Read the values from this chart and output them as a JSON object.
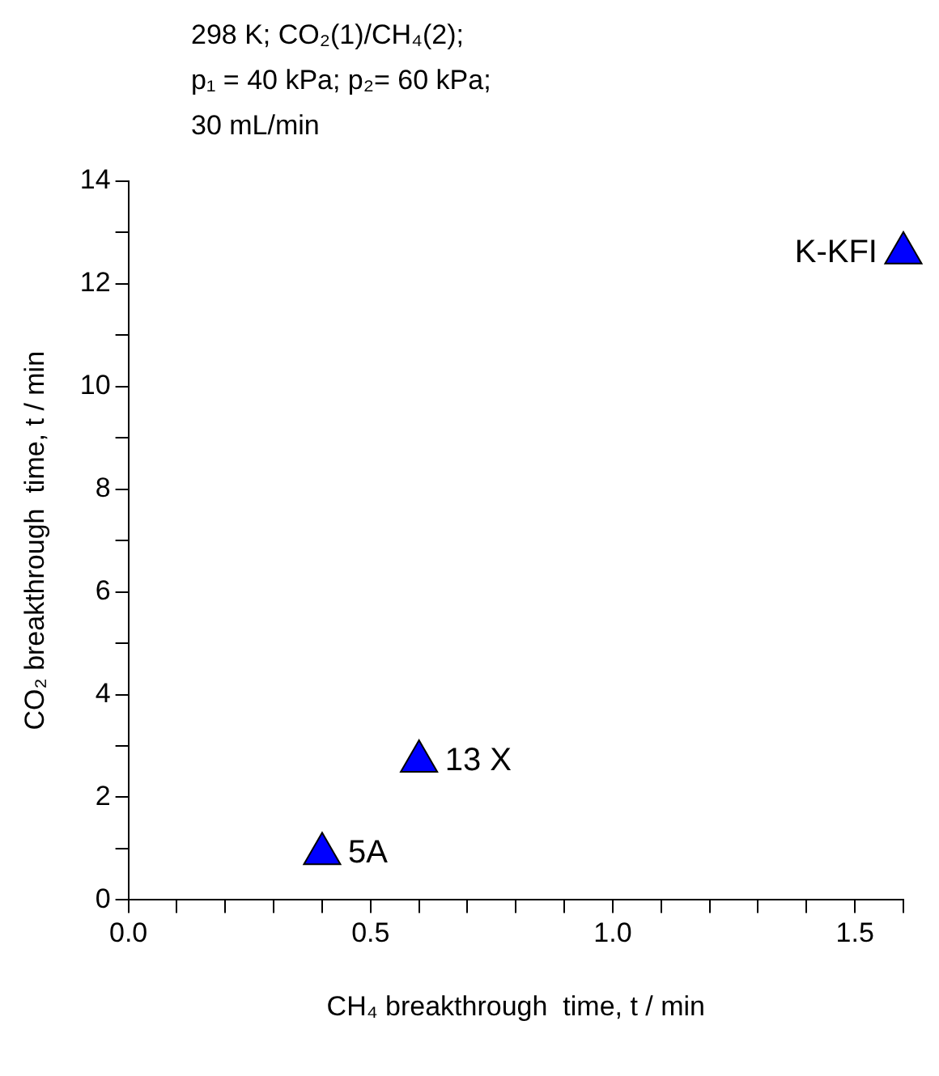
{
  "chart_data": {
    "type": "scatter",
    "title": "298 K; CO₂(1)/CH₄(2);\np₁ = 40 kPa; p₂= 60 kPa;\n30 mL/min",
    "xlabel": "CH₄ breakthrough  time, t / min",
    "ylabel": "CO₂ breakthrough  time, t / min",
    "x": [
      0.4,
      0.6,
      1.6
    ],
    "values": [
      0.9,
      2.7,
      12.6
    ],
    "color": "#0000ff",
    "marker": "triangle",
    "grid": false,
    "legend": false,
    "xlim": [
      0,
      1.6
    ],
    "xticks": [
      {
        "value": 0,
        "label": "0.0"
      },
      {
        "value": 0.1,
        "label": null
      },
      {
        "value": 0.2,
        "label": null
      },
      {
        "value": 0.3,
        "label": null
      },
      {
        "value": 0.4,
        "label": null
      },
      {
        "value": 0.5,
        "label": "0.5"
      },
      {
        "value": 0.6,
        "label": null
      },
      {
        "value": 0.7,
        "label": null
      },
      {
        "value": 0.8,
        "label": null
      },
      {
        "value": 0.9,
        "label": null
      },
      {
        "value": 1,
        "label": "1.0"
      },
      {
        "value": 1.1,
        "label": null
      },
      {
        "value": 1.2,
        "label": null
      },
      {
        "value": 1.3,
        "label": null
      },
      {
        "value": 1.4,
        "label": null
      },
      {
        "value": 1.5,
        "label": "1.5"
      },
      {
        "value": 1.6,
        "label": null
      }
    ],
    "ylim": [
      0,
      14
    ],
    "yticks": [
      0,
      {
        "value": 1,
        "label": null
      },
      2,
      {
        "value": 3,
        "label": null
      },
      4,
      {
        "value": 5,
        "label": null
      },
      6,
      {
        "value": 7,
        "label": null
      },
      8,
      {
        "value": 9,
        "label": null
      },
      10,
      {
        "value": 11,
        "label": null
      },
      12,
      {
        "value": 13,
        "label": null
      },
      14
    ],
    "annotations": [
      {
        "text": "5A",
        "x": 0.4,
        "y": 0.9
      },
      {
        "text": "13 X",
        "x": 0.6,
        "y": 2.7
      },
      {
        "text": "K-KFI",
        "x": 1.6,
        "y": 12.6
      }
    ]
  }
}
